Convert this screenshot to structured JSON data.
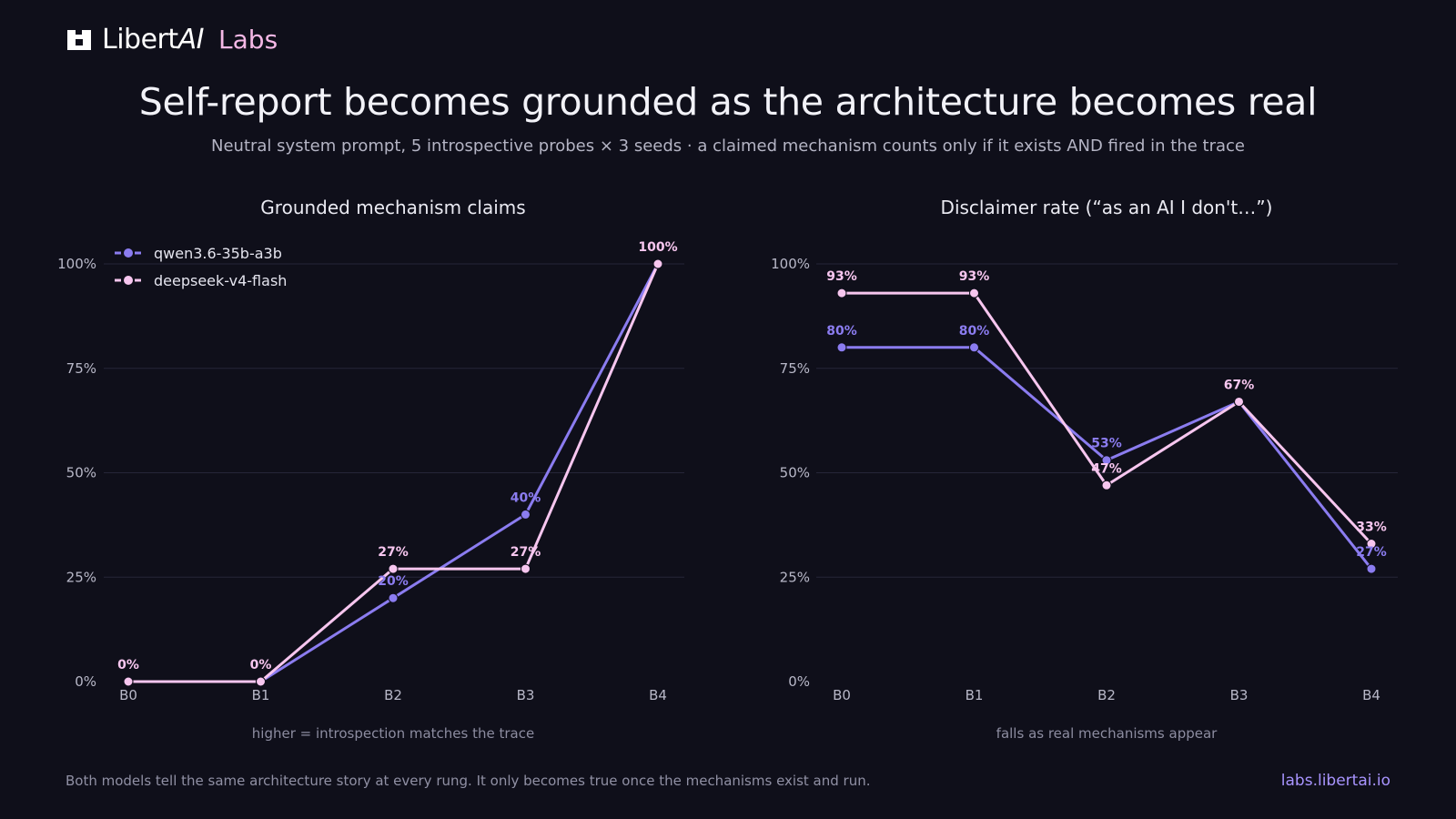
{
  "brand": {
    "name": "Libert",
    "name_italic": "AI",
    "labs": "Labs"
  },
  "header": {
    "title": "Self-report becomes grounded as the architecture becomes real",
    "subtitle": "Neutral system prompt, 5 introspective probes × 3 seeds  ·  a claimed mechanism counts only if it exists AND fired in the trace"
  },
  "colors": {
    "qwen": "#8b7cf0",
    "deepseek": "#f7c6ef",
    "grid": "#262638",
    "background": "#0f0f1a"
  },
  "chart_data": [
    {
      "type": "line",
      "title": "Grounded mechanism claims",
      "xlabel": "higher = introspection matches the trace",
      "categories": [
        "B0",
        "B1",
        "B2",
        "B3",
        "B4"
      ],
      "yticks": [
        "0%",
        "25%",
        "50%",
        "75%",
        "100%"
      ],
      "ylim": [
        0,
        100
      ],
      "legend": "top-left",
      "series": [
        {
          "name": "qwen3.6-35b-a3b",
          "color": "#8b7cf0",
          "values": [
            0,
            0,
            20,
            40,
            100
          ],
          "labels": [
            "",
            "",
            "20%",
            "40%",
            ""
          ]
        },
        {
          "name": "deepseek-v4-flash",
          "color": "#f7c6ef",
          "values": [
            0,
            0,
            27,
            27,
            100
          ],
          "labels": [
            "0%",
            "0%",
            "27%",
            "27%",
            "100%"
          ]
        }
      ]
    },
    {
      "type": "line",
      "title": "Disclaimer rate (“as an AI I don't…”)",
      "xlabel": "falls as real mechanisms appear",
      "categories": [
        "B0",
        "B1",
        "B2",
        "B3",
        "B4"
      ],
      "yticks": [
        "0%",
        "25%",
        "50%",
        "75%",
        "100%"
      ],
      "ylim": [
        0,
        100
      ],
      "series": [
        {
          "name": "qwen3.6-35b-a3b",
          "color": "#8b7cf0",
          "values": [
            80,
            80,
            53,
            67,
            27
          ],
          "labels": [
            "80%",
            "80%",
            "53%",
            "",
            "27%"
          ]
        },
        {
          "name": "deepseek-v4-flash",
          "color": "#f7c6ef",
          "values": [
            93,
            93,
            47,
            67,
            33
          ],
          "labels": [
            "93%",
            "93%",
            "47%",
            "67%",
            "33%"
          ]
        }
      ]
    }
  ],
  "footer": {
    "note": "Both models tell the same architecture story at every rung. It only becomes true once the mechanisms exist and run.",
    "link": "labs.libertai.io"
  }
}
